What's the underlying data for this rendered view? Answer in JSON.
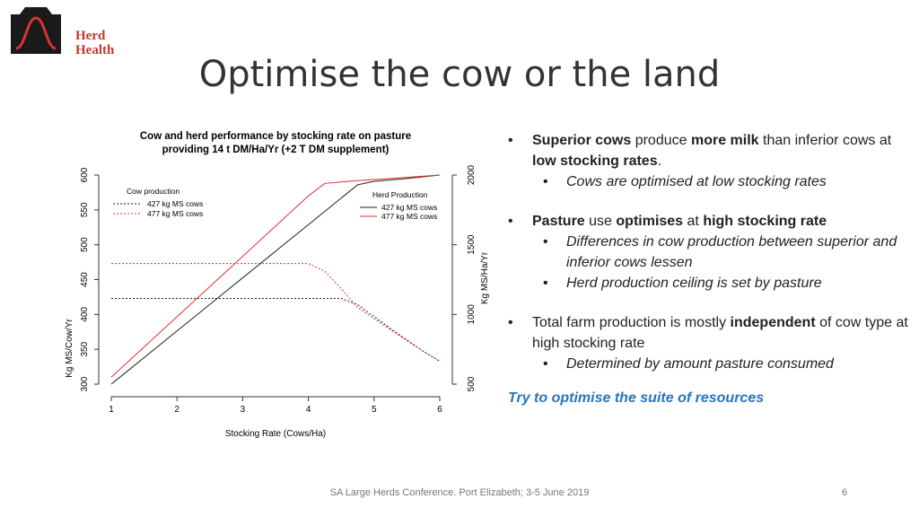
{
  "logo": {
    "line1": "Herd",
    "line2": "Health"
  },
  "title": "Optimise the cow or the land",
  "chart_data": {
    "type": "line",
    "title_line1": "Cow and herd performance by stocking rate on pasture",
    "title_line2": "providing 14 t DM/Ha/Yr (+2 T DM supplement)",
    "xlabel": "Stocking Rate (Cows/Ha)",
    "ylabel_left": "Kg MS/Cow/Yr",
    "ylabel_right": "Kg MS/Ha/Yr",
    "xlim": [
      1,
      6
    ],
    "ylim_left": [
      300,
      600
    ],
    "ylim_right": [
      500,
      2000
    ],
    "x_ticks": [
      "1",
      "2",
      "3",
      "4",
      "5",
      "6"
    ],
    "y_ticks_left": [
      "300",
      "350",
      "400",
      "450",
      "500",
      "550",
      "600"
    ],
    "y_ticks_right": [
      "500",
      "1000",
      "1500",
      "2000"
    ],
    "legend_cow": {
      "title": "Cow production",
      "labels": [
        "427 kg MS cows",
        "477 kg MS cows"
      ]
    },
    "legend_herd": {
      "title": "Herd Production",
      "labels": [
        "427 kg MS cows",
        "477 kg MS cows"
      ]
    },
    "colors": {
      "s427": "#222222",
      "s477": "#e03030"
    },
    "series": [
      {
        "axis": "left",
        "style": "dotted",
        "color_key": "s427",
        "x": [
          1,
          4.5,
          4.75,
          5.25,
          5.75,
          6
        ],
        "y": [
          423,
          423,
          414,
          380,
          347,
          333
        ]
      },
      {
        "axis": "left",
        "style": "dotted",
        "color_key": "s477",
        "x": [
          1,
          4,
          4.25,
          4.5,
          4.75,
          5.25,
          5.75,
          6
        ],
        "y": [
          473,
          473,
          462,
          437,
          410,
          378,
          347,
          333
        ]
      },
      {
        "axis": "right",
        "style": "solid",
        "color_key": "s427",
        "x": [
          1,
          4.75,
          5,
          5.5,
          6
        ],
        "y": [
          500,
          1930,
          1955,
          1975,
          2000
        ]
      },
      {
        "axis": "right",
        "style": "solid",
        "color_key": "s477",
        "x": [
          1,
          4,
          4.25,
          4.75,
          5.25,
          6
        ],
        "y": [
          550,
          1850,
          1940,
          1960,
          1975,
          2000
        ]
      }
    ]
  },
  "bullets": [
    {
      "parts": [
        {
          "t": "Superior cows",
          "b": true
        },
        {
          "t": " produce ",
          "b": false
        },
        {
          "t": "more milk",
          "b": true
        },
        {
          "t": " than inferior cows at ",
          "b": false
        },
        {
          "t": "low stocking rates",
          "b": true
        },
        {
          "t": ".",
          "b": false
        }
      ],
      "subs": [
        "Cows are optimised at low stocking rates"
      ]
    },
    {
      "parts": [
        {
          "t": "Pasture",
          "b": true
        },
        {
          "t": " use ",
          "b": false
        },
        {
          "t": "optimises",
          "b": true
        },
        {
          "t": " at ",
          "b": false
        },
        {
          "t": "high stocking rate",
          "b": true
        }
      ],
      "subs": [
        "Differences in cow production between superior and inferior cows lessen",
        "Herd production ceiling is set by pasture"
      ]
    },
    {
      "parts": [
        {
          "t": "Total farm production is mostly ",
          "b": false
        },
        {
          "t": "independent",
          "b": true
        },
        {
          "t": " of cow type at high stocking rate",
          "b": false
        }
      ],
      "subs": [
        "Determined by amount pasture consumed"
      ]
    }
  ],
  "bullet_symbol": "•",
  "try_text": "Try to optimise the suite of resources",
  "footer": "SA Large Herds Conference.  Port Elizabeth; 3-5 June 2019",
  "page_number": "6"
}
